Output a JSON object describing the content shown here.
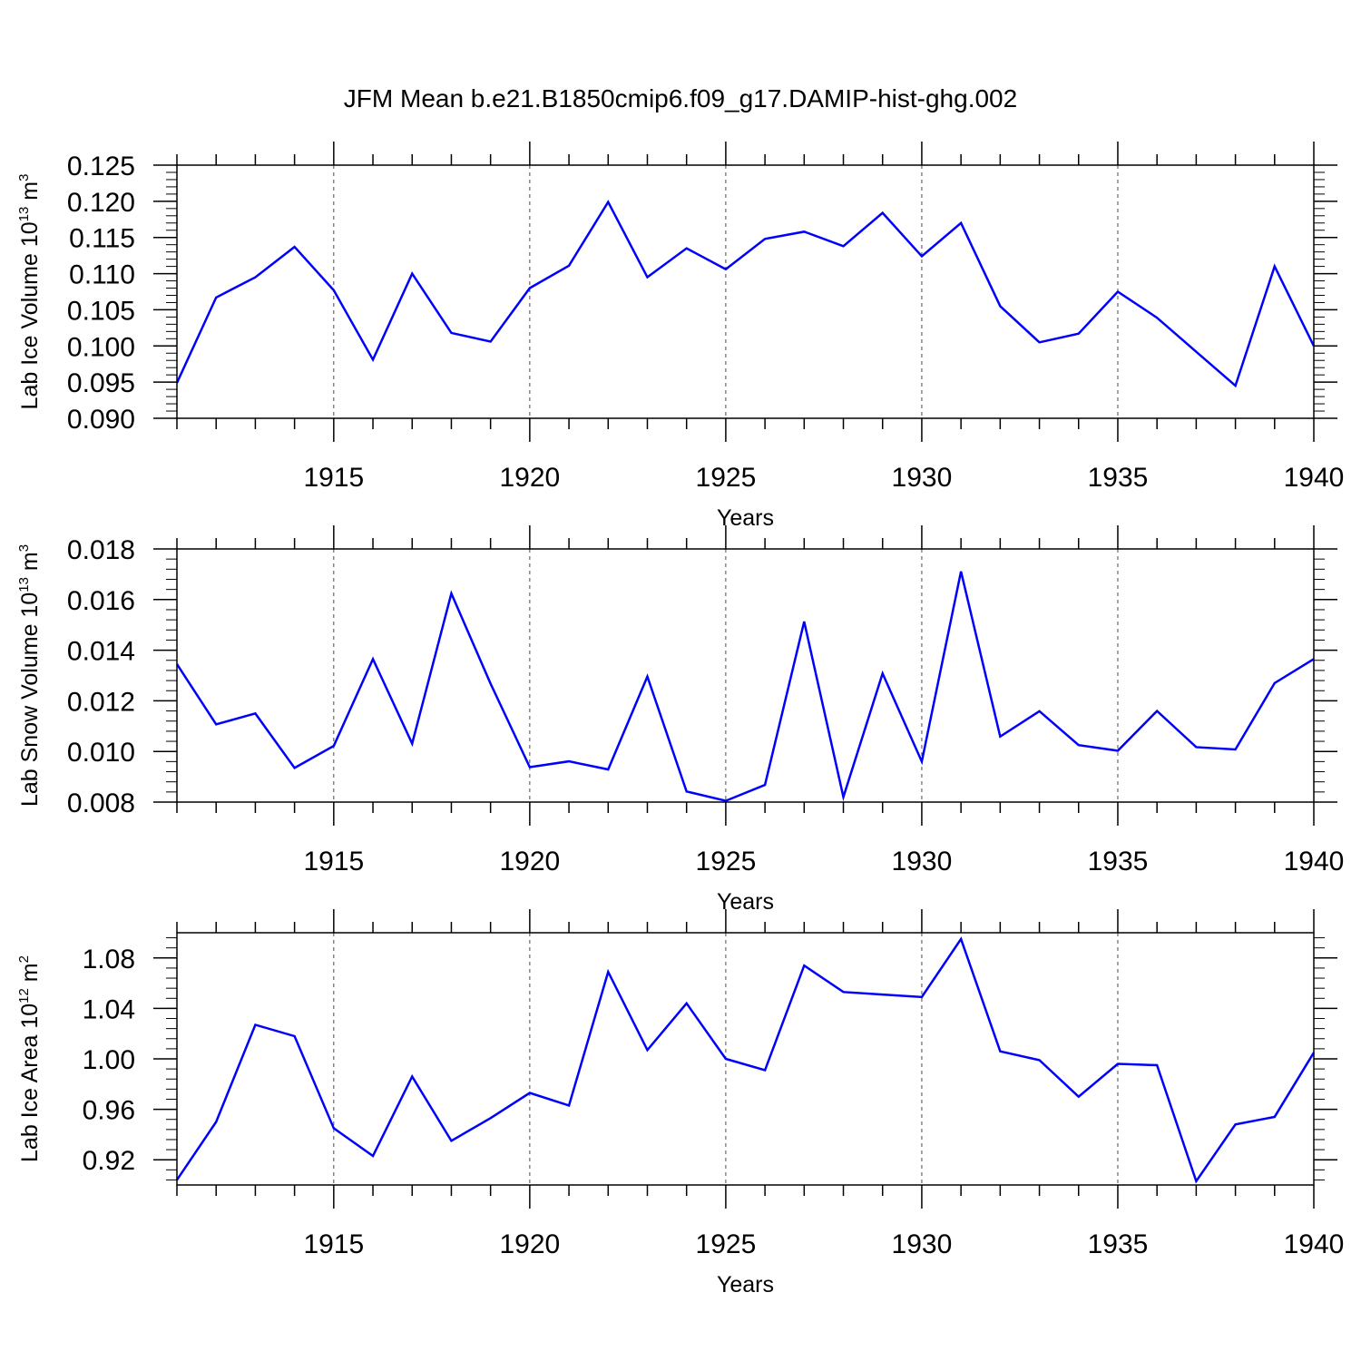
{
  "figure": {
    "title": "JFM Mean b.e21.B1850cmip6.f09_g17.DAMIP-hist-ghg.002",
    "line_color": "#0000ff",
    "grid_color": "#000000"
  },
  "chart_data": [
    {
      "type": "line",
      "title": "",
      "xlabel": "Years",
      "ylabel": "Lab Ice Volume 10",
      "ylabel_exp": "13",
      "ylabel_unit": " m",
      "ylabel_unit_exp": "3",
      "xlim": [
        1911,
        1940
      ],
      "ylim": [
        0.09,
        0.125
      ],
      "yticks": [
        "0.090",
        "0.095",
        "0.100",
        "0.105",
        "0.110",
        "0.115",
        "0.120",
        "0.125"
      ],
      "xticks": [
        "1915",
        "1920",
        "1925",
        "1930",
        "1935",
        "1940"
      ],
      "grid": "x dashed at major ticks",
      "x": [
        1911,
        1912,
        1913,
        1914,
        1915,
        1916,
        1917,
        1918,
        1919,
        1920,
        1921,
        1922,
        1923,
        1924,
        1925,
        1926,
        1927,
        1928,
        1929,
        1930,
        1931,
        1932,
        1933,
        1934,
        1935,
        1936,
        1937,
        1938,
        1939,
        1940
      ],
      "series": [
        {
          "values": [
            0.0949,
            0.1067,
            0.1095,
            0.1137,
            0.1077,
            0.0981,
            0.11,
            0.1018,
            0.1006,
            0.108,
            0.1111,
            0.1199,
            0.1095,
            0.1135,
            0.1106,
            0.1148,
            0.1158,
            0.1138,
            0.1184,
            0.1124,
            0.117,
            0.1055,
            0.1005,
            0.1017,
            0.1075,
            0.1039,
            0.0992,
            0.0945,
            0.111,
            0.1
          ]
        }
      ]
    },
    {
      "type": "line",
      "title": "",
      "xlabel": "Years",
      "ylabel": "Lab Snow Volume 10",
      "ylabel_exp": "13",
      "ylabel_unit": " m",
      "ylabel_unit_exp": "3",
      "xlim": [
        1911,
        1940
      ],
      "ylim": [
        0.008,
        0.018
      ],
      "yticks": [
        "0.008",
        "0.010",
        "0.012",
        "0.014",
        "0.016",
        "0.018"
      ],
      "xticks": [
        "1915",
        "1920",
        "1925",
        "1930",
        "1935",
        "1940"
      ],
      "grid": "x dashed at major ticks",
      "x": [
        1911,
        1912,
        1913,
        1914,
        1915,
        1916,
        1917,
        1918,
        1919,
        1920,
        1921,
        1922,
        1923,
        1924,
        1925,
        1926,
        1927,
        1928,
        1929,
        1930,
        1931,
        1932,
        1933,
        1934,
        1935,
        1936,
        1937,
        1938,
        1939,
        1940
      ],
      "series": [
        {
          "values": [
            0.01345,
            0.01107,
            0.0115,
            0.00935,
            0.01022,
            0.01365,
            0.01031,
            0.01624,
            0.01268,
            0.00938,
            0.00961,
            0.00929,
            0.01296,
            0.00842,
            0.00805,
            0.00868,
            0.01513,
            0.0082,
            0.01308,
            0.0096,
            0.01711,
            0.01059,
            0.01159,
            0.01025,
            0.01003,
            0.0116,
            0.01017,
            0.01008,
            0.0127,
            0.01365
          ]
        }
      ]
    },
    {
      "type": "line",
      "title": "",
      "xlabel": "Years",
      "ylabel": "Lab Ice Area 10",
      "ylabel_exp": "12",
      "ylabel_unit": " m",
      "ylabel_unit_exp": "2",
      "xlim": [
        1911,
        1940
      ],
      "ylim": [
        0.9,
        1.1
      ],
      "ytick_values": [
        0.92,
        0.96,
        1.0,
        1.04,
        1.08
      ],
      "yticks": [
        "0.92",
        "0.96",
        "1.00",
        "1.04",
        "1.08"
      ],
      "xticks": [
        "1915",
        "1920",
        "1925",
        "1930",
        "1935",
        "1940"
      ],
      "grid": "x dashed at major ticks",
      "x": [
        1911,
        1912,
        1913,
        1914,
        1915,
        1916,
        1917,
        1918,
        1919,
        1920,
        1921,
        1922,
        1923,
        1924,
        1925,
        1926,
        1927,
        1928,
        1929,
        1930,
        1931,
        1932,
        1933,
        1934,
        1935,
        1936,
        1937,
        1938,
        1939,
        1940
      ],
      "series": [
        {
          "values": [
            0.904,
            0.95,
            1.027,
            1.018,
            0.945,
            0.923,
            0.986,
            0.935,
            0.953,
            0.973,
            0.963,
            1.069,
            1.007,
            1.044,
            1.0,
            0.991,
            1.074,
            1.053,
            1.051,
            1.049,
            1.095,
            1.006,
            0.999,
            0.97,
            0.996,
            0.995,
            0.903,
            0.948,
            0.954,
            1.005
          ]
        }
      ]
    }
  ]
}
